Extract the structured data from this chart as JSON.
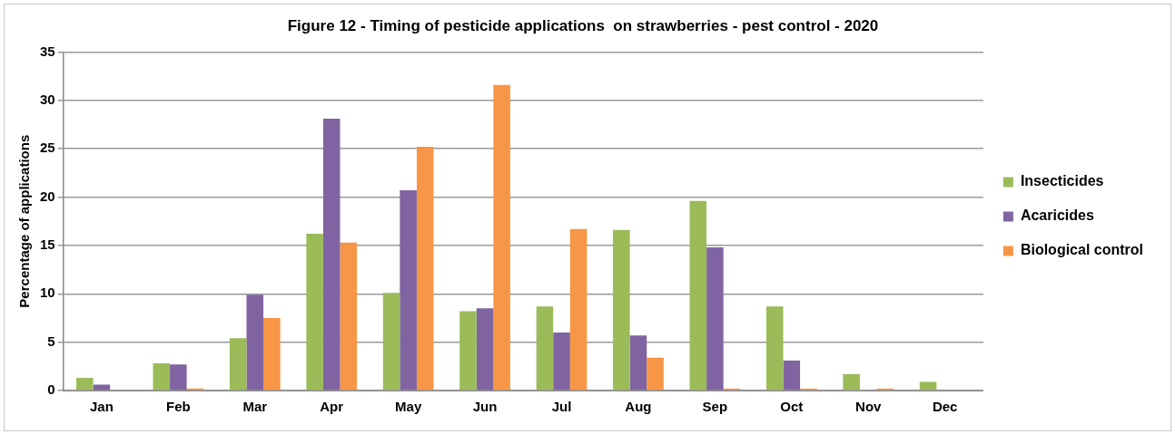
{
  "chart_data": {
    "type": "bar",
    "title": "Figure 12 - Timing of pesticide applications  on strawberries - pest control - 2020",
    "ylabel": "Percentage of applications",
    "categories": [
      "Jan",
      "Feb",
      "Mar",
      "Apr",
      "May",
      "Jun",
      "Jul",
      "Aug",
      "Sep",
      "Oct",
      "Nov",
      "Dec"
    ],
    "series": [
      {
        "name": "Insecticides",
        "color": "#9bbb59",
        "values": [
          1.3,
          2.8,
          5.4,
          16.2,
          10.1,
          8.2,
          8.7,
          16.6,
          19.6,
          8.7,
          1.7,
          0.9
        ]
      },
      {
        "name": "Acaricides",
        "color": "#8064a2",
        "values": [
          0.6,
          2.7,
          9.9,
          28.1,
          20.7,
          8.5,
          6.0,
          5.7,
          14.8,
          3.1,
          0,
          0
        ]
      },
      {
        "name": "Biological control",
        "color": "#f79646",
        "values": [
          0,
          0.2,
          7.5,
          15.3,
          25.2,
          31.6,
          16.7,
          3.4,
          0.2,
          0.2,
          0.2,
          0
        ]
      }
    ],
    "ylim": [
      0,
      35
    ],
    "yticks": [
      0,
      5,
      10,
      15,
      20,
      25,
      30,
      35
    ],
    "grid": "y",
    "legend": "right"
  }
}
